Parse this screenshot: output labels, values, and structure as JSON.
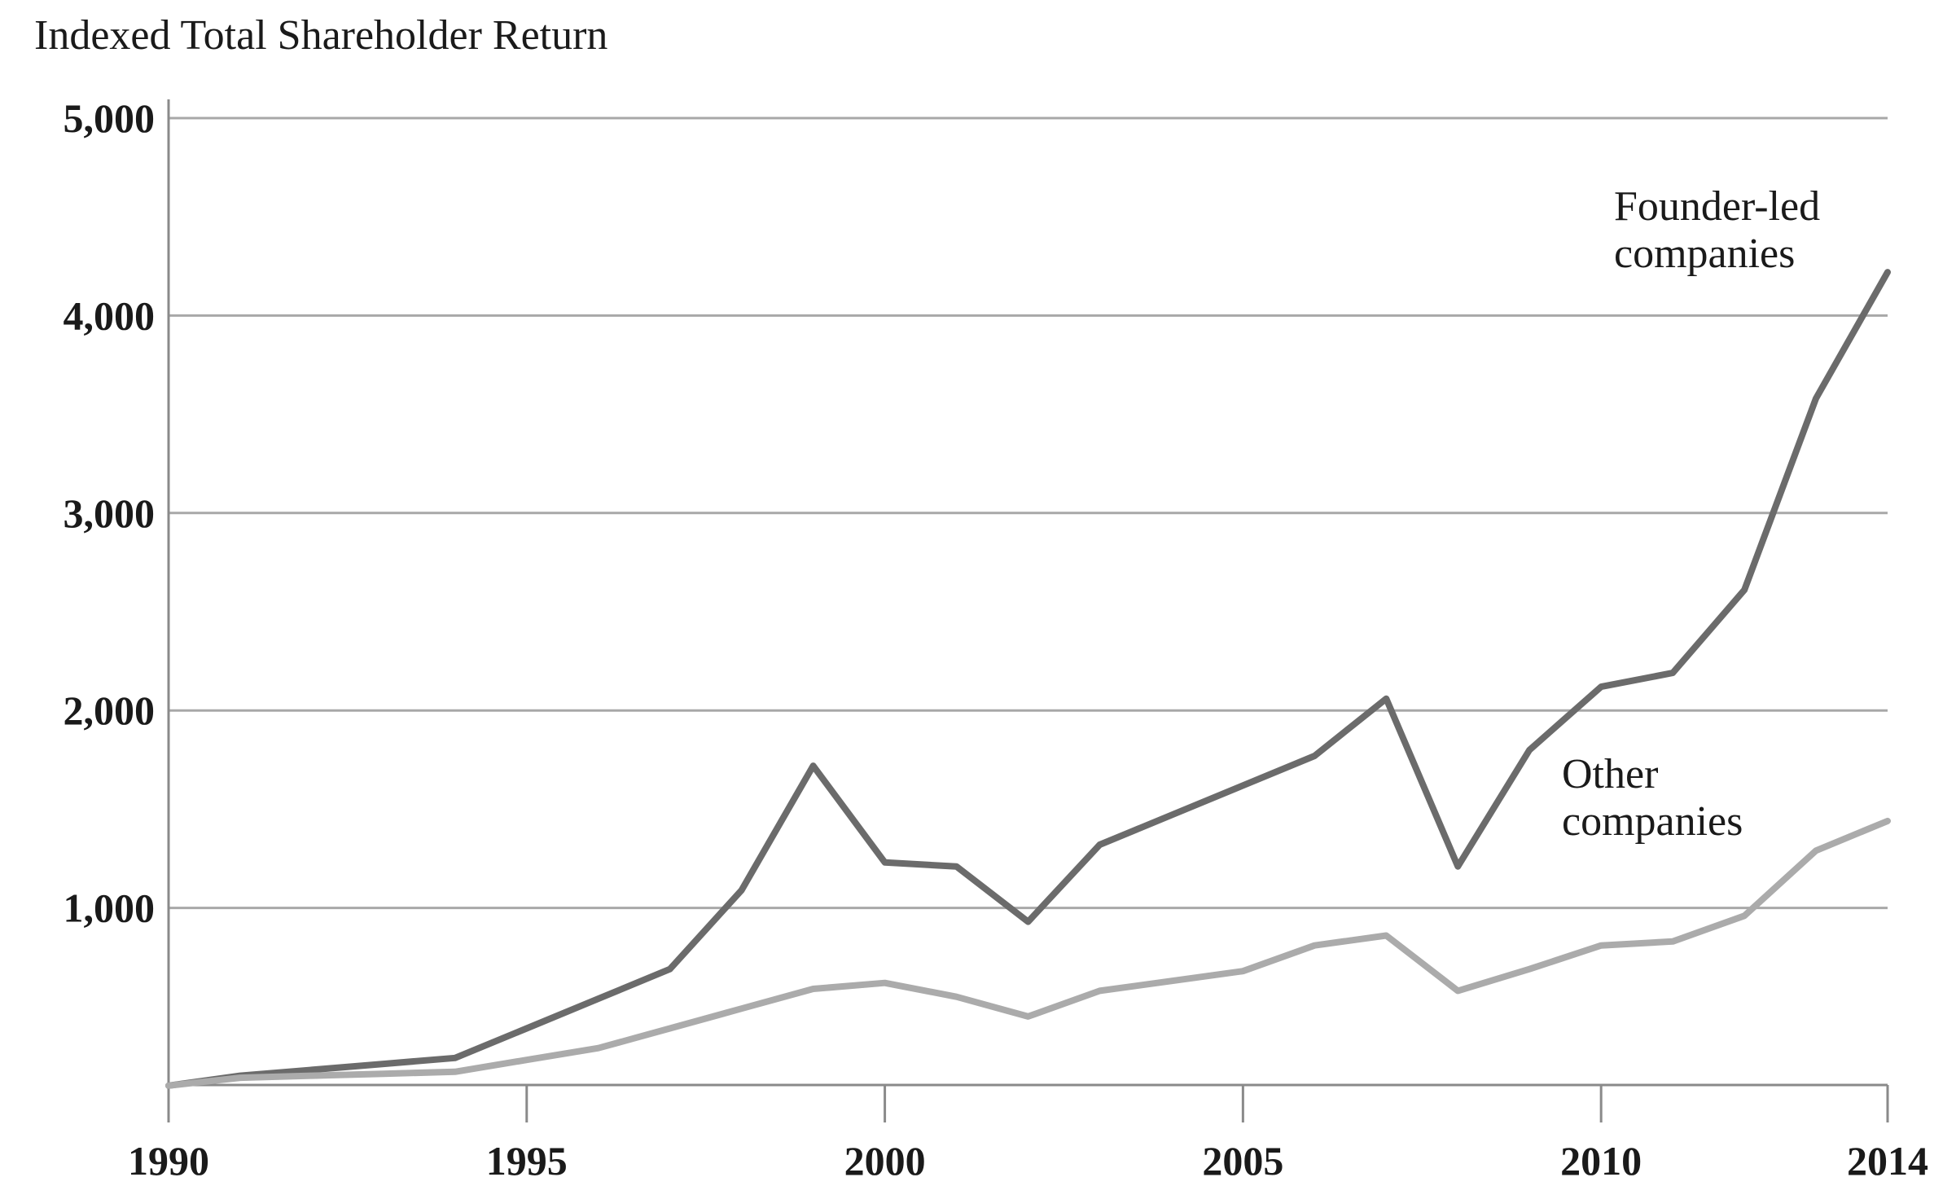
{
  "chart_data": {
    "type": "line",
    "title": "Indexed Total Shareholder Return",
    "xlabel": "",
    "ylabel": "",
    "xlim": [
      1990,
      2014
    ],
    "ylim": [
      0,
      5000
    ],
    "x_ticks": [
      "1990",
      "1995",
      "2000",
      "2005",
      "2010",
      "2014"
    ],
    "y_ticks": [
      "1,000",
      "2,000",
      "3,000",
      "4,000",
      "5,000"
    ],
    "grid": "horizontal",
    "legend": "inline labels near line ends",
    "series": [
      {
        "name": "Founder-led companies",
        "label_lines": [
          "Founder-led",
          "companies"
        ],
        "color": "#6b6b6b",
        "x": [
          1990,
          1991,
          1992,
          1993,
          1994,
          1995,
          1996,
          1997,
          1998,
          1999,
          2000,
          2001,
          2002,
          2003,
          2004,
          2005,
          2006,
          2007,
          2008,
          2009,
          2010,
          2011,
          2012,
          2013,
          2014
        ],
        "values": [
          100,
          150,
          180,
          210,
          240,
          390,
          540,
          690,
          1090,
          1720,
          1230,
          1210,
          930,
          1320,
          1470,
          1620,
          1770,
          2060,
          1210,
          1800,
          2120,
          2190,
          2610,
          3580,
          4220
        ]
      },
      {
        "name": "Other companies",
        "label_lines": [
          "Other",
          "companies"
        ],
        "color": "#ababab",
        "x": [
          1990,
          1991,
          1992,
          1993,
          1994,
          1995,
          1996,
          1997,
          1998,
          1999,
          2000,
          2001,
          2002,
          2003,
          2004,
          2005,
          2006,
          2007,
          2008,
          2009,
          2010,
          2011,
          2012,
          2013,
          2014
        ],
        "values": [
          100,
          140,
          150,
          160,
          170,
          230,
          290,
          390,
          490,
          590,
          620,
          550,
          450,
          580,
          630,
          680,
          810,
          860,
          580,
          690,
          810,
          830,
          960,
          1290,
          1440
        ]
      }
    ]
  }
}
